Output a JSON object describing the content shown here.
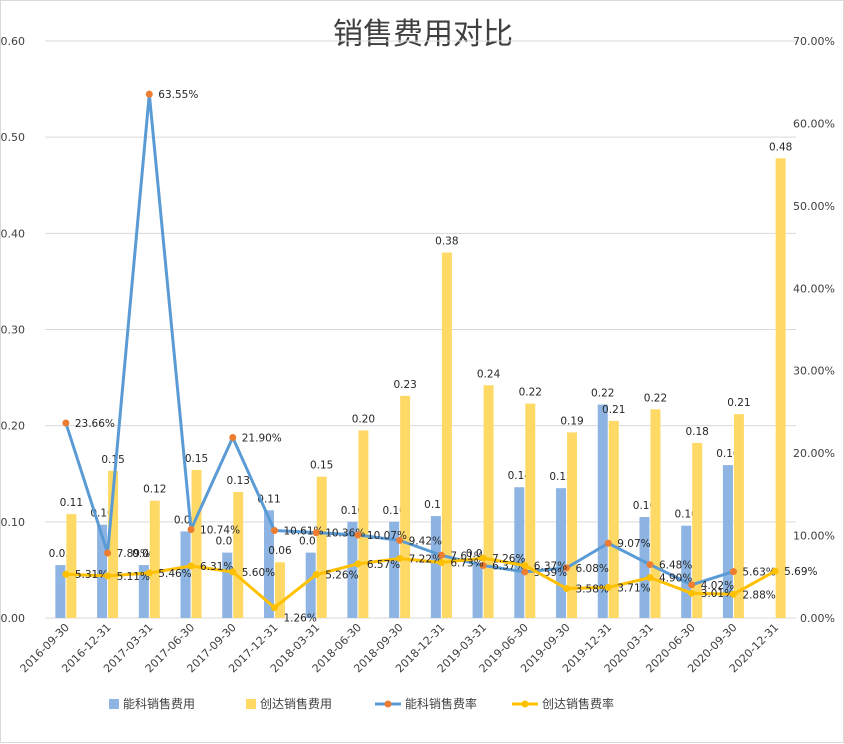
{
  "chart_data": {
    "type": "bar",
    "title": "销售费用对比",
    "categories": [
      "2016-09-30",
      "2016-12-31",
      "2017-03-31",
      "2017-06-30",
      "2017-09-30",
      "2017-12-31",
      "2018-03-31",
      "2018-06-30",
      "2018-09-30",
      "2018-12-31",
      "2019-03-31",
      "2019-06-30",
      "2019-09-30",
      "2019-12-31",
      "2020-03-31",
      "2020-06-30",
      "2020-09-30",
      "2020-12-31"
    ],
    "y_left": {
      "ticks": [
        "0.00",
        "0.10",
        "0.20",
        "0.30",
        "0.40",
        "0.50",
        "0.60"
      ],
      "ylim": [
        0,
        0.6
      ]
    },
    "y_right": {
      "ticks": [
        "0.00%",
        "10.00%",
        "20.00%",
        "30.00%",
        "40.00%",
        "50.00%",
        "60.00%",
        "70.00%"
      ],
      "ylim": [
        0,
        70
      ]
    },
    "grid": true,
    "legend_position": "bottom",
    "series": [
      {
        "name": "能科销售费用",
        "kind": "bar",
        "axis": "left",
        "color": "#8DB4E2",
        "values": [
          0.055,
          0.097,
          0.055,
          0.09,
          0.068,
          0.112,
          0.068,
          0.1,
          0.1,
          0.106,
          0.055,
          0.136,
          0.135,
          0.222,
          0.105,
          0.096,
          0.159,
          null
        ],
        "labels": [
          "0.05",
          "0.10",
          "0.06",
          "0.09",
          "0.07",
          "0.11",
          "0.07",
          "0.10",
          "0.10",
          "0.11",
          "0.05",
          "0.14",
          "0.13",
          "0.22",
          "0.10",
          "0.10",
          "0.16",
          ""
        ]
      },
      {
        "name": "创达销售费用",
        "kind": "bar",
        "axis": "left",
        "color": "#FFD966",
        "values": [
          0.108,
          0.153,
          0.122,
          0.154,
          0.131,
          0.058,
          0.147,
          0.195,
          0.231,
          0.38,
          0.242,
          0.223,
          0.193,
          0.205,
          0.217,
          0.182,
          0.212,
          0.478
        ],
        "labels": [
          "0.11",
          "0.15",
          "0.12",
          "0.15",
          "0.13",
          "0.06",
          "0.15",
          "0.20",
          "0.23",
          "0.38",
          "0.24",
          "0.22",
          "0.19",
          "0.21",
          "0.22",
          "0.18",
          "0.21",
          "0.48"
        ]
      },
      {
        "name": "能科销售费率",
        "kind": "line",
        "axis": "right",
        "color": "#5B9BD5",
        "marker_color": "#ED7D31",
        "values": [
          23.66,
          7.89,
          63.55,
          10.74,
          21.9,
          10.61,
          10.36,
          10.07,
          9.42,
          7.61,
          6.37,
          5.59,
          6.08,
          9.07,
          6.48,
          4.02,
          5.63,
          null
        ],
        "labels": [
          "23.66%",
          "7.89%",
          "63.55%",
          "10.74%",
          "21.90%",
          "10.61%",
          "10.36%",
          "10.07%",
          "9.42%",
          "7.61%",
          "6.37%",
          "5.59%",
          "6.08%",
          "9.07%",
          "6.48%",
          "4.02%",
          "5.63%",
          ""
        ]
      },
      {
        "name": "创达销售费率",
        "kind": "line",
        "axis": "right",
        "color": "#FFC000",
        "marker_color": "#FFC000",
        "values": [
          5.31,
          5.11,
          5.46,
          6.31,
          5.6,
          1.26,
          5.26,
          6.57,
          7.22,
          6.73,
          7.26,
          6.37,
          3.58,
          3.71,
          4.9,
          3.01,
          2.88,
          5.69
        ],
        "labels": [
          "5.31%",
          "5.11%",
          "5.46%",
          "6.31%",
          "5.60%",
          "1.26%",
          "5.26%",
          "6.57%",
          "7.22%",
          "6.73%",
          "7.26%",
          "6.37%",
          "3.58%",
          "3.71%",
          "4.90%",
          "3.01%",
          "2.88%",
          "5.69%"
        ]
      }
    ]
  }
}
